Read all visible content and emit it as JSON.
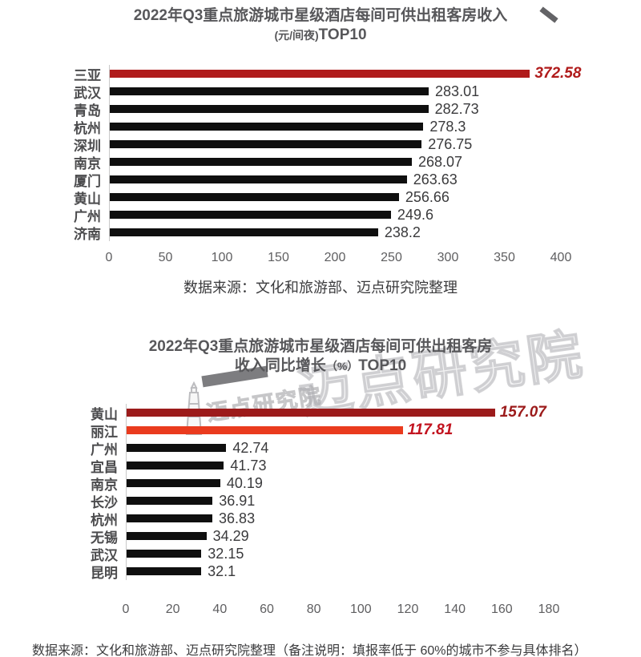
{
  "watermark": {
    "text": "迈点研究院"
  },
  "footer": "数据来源：文化和旅游部、迈点研究院整理（备注说明：填报率低于 60%的城市不参与具体排名）",
  "chart_data": [
    {
      "type": "bar",
      "orientation": "horizontal",
      "title": "2022年Q3重点旅游城市星级酒店每间可供出租客房收入",
      "subtitle_small": "(元/间夜)",
      "subtitle_big": "TOP10",
      "source": "数据来源：文化和旅游部、迈点研究院整理",
      "axis": {
        "max": 400,
        "ticks": [
          "0",
          "50",
          "100",
          "150",
          "200",
          "250",
          "300",
          "350",
          "400"
        ]
      },
      "grid": false,
      "bars": [
        {
          "city": "三亚",
          "value": 372.58,
          "label": "372.58",
          "highlight": true,
          "bar_color": "#b01b1b",
          "value_color": "#b01b1b"
        },
        {
          "city": "武汉",
          "value": 283.01,
          "label": "283.01"
        },
        {
          "city": "青岛",
          "value": 282.73,
          "label": "282.73"
        },
        {
          "city": "杭州",
          "value": 278.3,
          "label": "278.3"
        },
        {
          "city": "深圳",
          "value": 276.75,
          "label": "276.75"
        },
        {
          "city": "南京",
          "value": 268.07,
          "label": "268.07"
        },
        {
          "city": "厦门",
          "value": 263.63,
          "label": "263.63"
        },
        {
          "city": "黄山",
          "value": 256.66,
          "label": "256.66"
        },
        {
          "city": "广州",
          "value": 249.6,
          "label": "249.6"
        },
        {
          "city": "济南",
          "value": 238.2,
          "label": "238.2"
        }
      ]
    },
    {
      "type": "bar",
      "orientation": "horizontal",
      "title": "2022年Q3重点旅游城市星级酒店每间可供出租客房",
      "line2_pre": "收入同比增长",
      "line2_small": "（%）",
      "line2_post": "TOP10",
      "source": "",
      "axis": {
        "max": 180,
        "ticks": [
          "0",
          "20",
          "40",
          "60",
          "80",
          "100",
          "120",
          "140",
          "160",
          "180"
        ]
      },
      "grid": false,
      "bars": [
        {
          "city": "黄山",
          "value": 157.07,
          "label": "157.07",
          "highlight": true,
          "bar_color": "#9c1b1b",
          "value_color": "#9c1b1b"
        },
        {
          "city": "丽江",
          "value": 117.81,
          "label": "117.81",
          "highlight": true,
          "bar_color": "#ea3b1e",
          "value_color": "#c2131f"
        },
        {
          "city": "广州",
          "value": 42.74,
          "label": "42.74"
        },
        {
          "city": "宜昌",
          "value": 41.73,
          "label": "41.73"
        },
        {
          "city": "南京",
          "value": 40.19,
          "label": "40.19"
        },
        {
          "city": "长沙",
          "value": 36.91,
          "label": "36.91"
        },
        {
          "city": "杭州",
          "value": 36.83,
          "label": "36.83"
        },
        {
          "city": "无锡",
          "value": 34.29,
          "label": "34.29"
        },
        {
          "city": "武汉",
          "value": 32.15,
          "label": "32.15"
        },
        {
          "city": "昆明",
          "value": 32.1,
          "label": "32.1"
        }
      ]
    }
  ]
}
